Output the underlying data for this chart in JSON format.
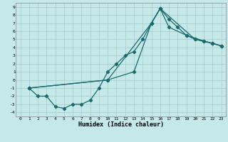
{
  "title": "",
  "xlabel": "Humidex (Indice chaleur)",
  "bg_color": "#c5e8e8",
  "grid_color": "#aacfcf",
  "line_color": "#1a6b6b",
  "xlim": [
    -0.5,
    23.5
  ],
  "ylim": [
    -4.5,
    9.5
  ],
  "xticks": [
    0,
    1,
    2,
    3,
    4,
    5,
    6,
    7,
    8,
    9,
    10,
    11,
    12,
    13,
    14,
    15,
    16,
    17,
    18,
    19,
    20,
    21,
    22,
    23
  ],
  "yticks": [
    -4,
    -3,
    -2,
    -1,
    0,
    1,
    2,
    3,
    4,
    5,
    6,
    7,
    8,
    9
  ],
  "line1_x": [
    1,
    2,
    3,
    4,
    5,
    6,
    7,
    8,
    9,
    10,
    11,
    12,
    13,
    14,
    15,
    16,
    17,
    18,
    19,
    20,
    21,
    22,
    23
  ],
  "line1_y": [
    -1,
    -2,
    -2,
    -3.3,
    -3.5,
    -3.0,
    -3.0,
    -2.5,
    -1.0,
    1.0,
    2.0,
    3.0,
    3.5,
    5.0,
    7.0,
    8.8,
    7.5,
    6.5,
    5.5,
    5.0,
    4.8,
    4.5,
    4.2
  ],
  "line2_x": [
    1,
    10,
    13,
    15,
    16,
    17,
    19,
    21,
    22,
    23
  ],
  "line2_y": [
    -1,
    0.0,
    1.0,
    7.0,
    8.8,
    6.5,
    5.5,
    4.8,
    4.5,
    4.2
  ],
  "line3_x": [
    1,
    10,
    15,
    16,
    20,
    22,
    23
  ],
  "line3_y": [
    -1,
    0.0,
    7.0,
    8.8,
    5.0,
    4.5,
    4.2
  ]
}
